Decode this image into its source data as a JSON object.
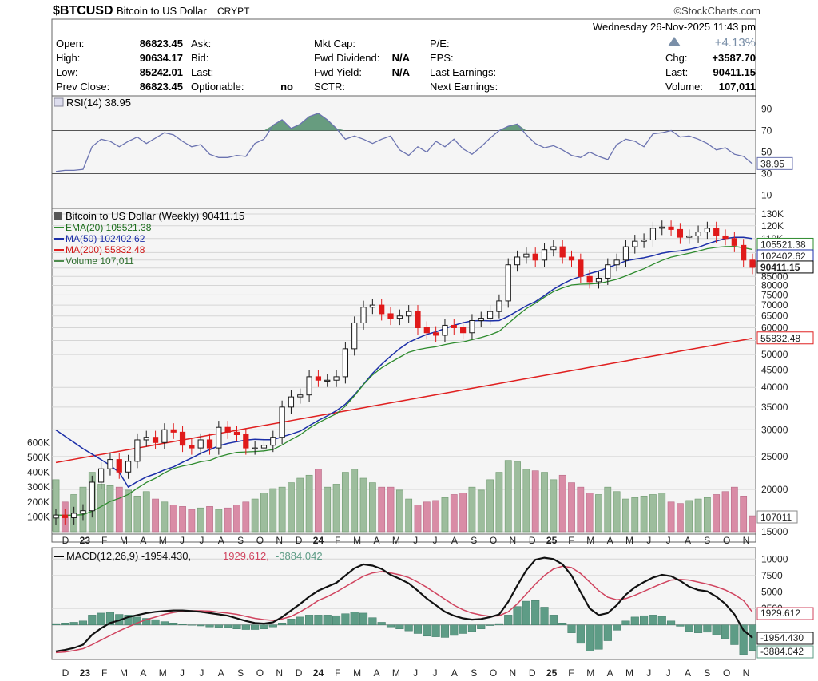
{
  "header": {
    "symbol": "$BTCUSD",
    "name": "Bitcoin to US Dollar",
    "exchange": "CRYPT",
    "logo": "©StockCharts.com",
    "date": "Wednesday  26-Nov-2025  11:43 pm",
    "change_pct": "+4.13%",
    "quote": {
      "open_label": "Open:",
      "open": "86823.45",
      "high_label": "High:",
      "high": "90634.17",
      "low_label": "Low:",
      "low": "85242.01",
      "prev_label": "Prev Close:",
      "prev": "86823.45",
      "ask_label": "Ask:",
      "bid_label": "Bid:",
      "last_label2": "Last:",
      "optionable_label": "Optionable:",
      "optionable": "no",
      "mktcap_label": "Mkt Cap:",
      "fwd_div_label": "Fwd Dividend:",
      "fwd_div": "N/A",
      "fwd_yield_label": "Fwd Yield:",
      "fwd_yield": "N/A",
      "sctr_label": "SCTR:",
      "pe_label": "P/E:",
      "eps_label": "EPS:",
      "last_earn_label": "Last Earnings:",
      "next_earn_label": "Next Earnings:",
      "chg_label": "Chg:",
      "chg": "+3587.70",
      "last_label": "Last:",
      "last": "90411.15",
      "volume_label": "Volume:",
      "volume": "107,011"
    }
  },
  "colors": {
    "panel_bg": "#f5f5f5",
    "up": "#1a1a1a",
    "down": "#e01a1a",
    "ema20": "#2e8b2e",
    "ma50": "#1c2fa8",
    "ma200": "#e02020",
    "vol_up": "#9dbd9d",
    "vol_down": "#d98ca6",
    "rsi_line": "#6b73b0",
    "rsi_fill": "#4e8c6a",
    "macd": "#111111",
    "signal": "#d0445f",
    "hist": "#5e9c86",
    "grid": "#d5d5d5"
  },
  "chart_data": [
    {
      "type": "line",
      "panel": "rsi",
      "title": "RSI(14) 38.95",
      "last_label": "38.95",
      "y_ticks": [
        "90",
        "70",
        "50",
        "30",
        "10"
      ],
      "ylim": [
        0,
        100
      ],
      "guides": [
        70,
        50,
        30
      ],
      "values": [
        32,
        33,
        33,
        34,
        55,
        62,
        60,
        55,
        60,
        64,
        58,
        63,
        68,
        66,
        60,
        55,
        57,
        48,
        45,
        45,
        47,
        46,
        58,
        62,
        75,
        80,
        72,
        76,
        83,
        86,
        80,
        72,
        62,
        65,
        62,
        58,
        62,
        65,
        52,
        47,
        55,
        50,
        60,
        55,
        62,
        53,
        48,
        55,
        63,
        70,
        74,
        76,
        66,
        58,
        54,
        56,
        52,
        47,
        45,
        50,
        46,
        43,
        57,
        62,
        60,
        55,
        67,
        68,
        70,
        64,
        65,
        62,
        58,
        52,
        54,
        48,
        46,
        39
      ]
    },
    {
      "type": "candlestick",
      "panel": "price",
      "title": "Bitcoin to US Dollar (Weekly) 90411.15",
      "y_scale": "log",
      "y_ticks": [
        "130K",
        "120K",
        "110K",
        "100K",
        "95000",
        "90000",
        "85000",
        "80000",
        "75000",
        "70000",
        "65000",
        "60000",
        "55000",
        "50000",
        "45000",
        "40000",
        "35000",
        "30000",
        "25000",
        "20000",
        "15000"
      ],
      "legend": [
        {
          "name": "EMA(20) 105521.38",
          "color": "#2e8b2e"
        },
        {
          "name": "MA(50) 102402.62",
          "color": "#1c2fa8"
        },
        {
          "name": "MA(200) 55832.48",
          "color": "#e02020"
        },
        {
          "name": "Volume 107,011",
          "color": "#4e8c4e"
        }
      ],
      "price_labels": [
        "105521.38",
        "102402.62",
        "90411.15",
        "55832.48"
      ],
      "x_ticks": [
        "D",
        "23",
        "F",
        "M",
        "A",
        "M",
        "J",
        "J",
        "A",
        "S",
        "O",
        "N",
        "D",
        "24",
        "F",
        "M",
        "A",
        "M",
        "J",
        "J",
        "A",
        "S",
        "O",
        "N",
        "D",
        "25",
        "F",
        "M",
        "A",
        "M",
        "J",
        "J",
        "A",
        "S",
        "O",
        "N"
      ],
      "close": [
        16800,
        16500,
        17000,
        17300,
        21000,
        23000,
        24500,
        22500,
        24200,
        28000,
        28500,
        27500,
        30000,
        29500,
        27000,
        26500,
        28000,
        26500,
        30500,
        29500,
        29000,
        26500,
        26500,
        27000,
        28500,
        35000,
        37500,
        38000,
        43000,
        42000,
        42000,
        43000,
        52000,
        62000,
        69000,
        70000,
        66000,
        64000,
        65000,
        67000,
        60000,
        58000,
        57000,
        61000,
        60000,
        58000,
        63000,
        64000,
        67000,
        72000,
        92000,
        97000,
        99000,
        95000,
        102000,
        104000,
        97000,
        95000,
        85000,
        82000,
        84000,
        92000,
        95000,
        104000,
        108000,
        109000,
        118000,
        119000,
        117000,
        111000,
        112000,
        115000,
        118000,
        112000,
        110000,
        105000,
        95000,
        90411
      ],
      "ylim": [
        15000,
        130000
      ],
      "volume": [
        350,
        200,
        250,
        300,
        400,
        320,
        310,
        300,
        280,
        240,
        270,
        220,
        200,
        180,
        170,
        150,
        160,
        170,
        150,
        160,
        180,
        200,
        220,
        260,
        290,
        300,
        330,
        360,
        380,
        420,
        300,
        320,
        400,
        420,
        360,
        330,
        300,
        300,
        280,
        220,
        180,
        200,
        210,
        230,
        250,
        260,
        300,
        280,
        350,
        400,
        480,
        470,
        420,
        410,
        400,
        350,
        380,
        330,
        300,
        260,
        250,
        300,
        270,
        220,
        230,
        240,
        250,
        260,
        200,
        190,
        210,
        220,
        230,
        250,
        270,
        300,
        240,
        107
      ]
    },
    {
      "type": "line",
      "panel": "macd",
      "title": "MACD(12,26,9) -1954.430, 1929.612, -3884.042",
      "y_ticks": [
        "10000",
        "7500",
        "5000",
        "2500"
      ],
      "legend": [
        {
          "name": "MACD(12,26,9) -1954.430,",
          "color": "#111111"
        },
        {
          "name": "1929.612,",
          "color": "#d0445f"
        },
        {
          "name": "-3884.042",
          "color": "#5e9c86"
        }
      ],
      "price_labels": [
        "1929.612",
        "-1954.430",
        "-3884.042"
      ],
      "ylim": [
        -5000,
        11000
      ],
      "macd": [
        -4000,
        -3800,
        -3500,
        -3000,
        -1500,
        -500,
        300,
        700,
        1200,
        1500,
        1800,
        2000,
        2100,
        2200,
        2200,
        2100,
        2000,
        1800,
        1600,
        1400,
        1000,
        600,
        300,
        200,
        400,
        1200,
        2200,
        3200,
        4300,
        5200,
        5800,
        6400,
        7500,
        8600,
        9200,
        9000,
        8500,
        7600,
        7000,
        6300,
        5200,
        4000,
        3000,
        2000,
        1400,
        1000,
        800,
        900,
        1200,
        1600,
        3500,
        6000,
        8300,
        9900,
        10200,
        10000,
        9200,
        7500,
        5000,
        2500,
        1500,
        1800,
        3000,
        4600,
        5700,
        6500,
        7200,
        7600,
        7400,
        6700,
        5800,
        5300,
        5100,
        4300,
        3200,
        1600,
        -800,
        -1954
      ],
      "signal": [
        -4200,
        -4100,
        -3900,
        -3600,
        -3000,
        -2300,
        -1600,
        -900,
        -300,
        300,
        800,
        1200,
        1600,
        1900,
        2100,
        2150,
        2150,
        2100,
        1950,
        1800,
        1600,
        1300,
        1000,
        800,
        700,
        900,
        1300,
        2000,
        2800,
        3700,
        4300,
        5000,
        5800,
        6600,
        7400,
        7900,
        8100,
        7900,
        7600,
        7200,
        6500,
        5700,
        4800,
        3900,
        3000,
        2300,
        1800,
        1500,
        1300,
        1400,
        2000,
        3200,
        4700,
        6200,
        7500,
        8500,
        8900,
        8700,
        7800,
        6500,
        5200,
        4200,
        3800,
        4000,
        4500,
        5100,
        5700,
        6300,
        6800,
        6900,
        6800,
        6500,
        6200,
        5800,
        5300,
        4600,
        3700,
        1929
      ]
    }
  ]
}
